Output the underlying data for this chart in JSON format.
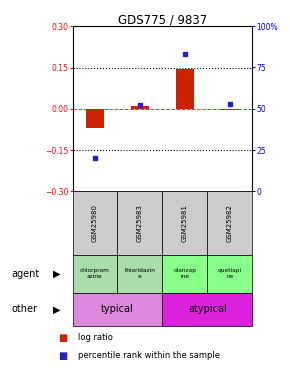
{
  "title": "GDS775 / 9837",
  "samples": [
    "GSM25980",
    "GSM25983",
    "GSM25981",
    "GSM25982"
  ],
  "log_ratios": [
    -0.07,
    0.01,
    0.145,
    -0.005
  ],
  "percentile_ranks": [
    20,
    52,
    83,
    53
  ],
  "agent_labels": [
    "chlorprom\nazine",
    "thioridazin\ne",
    "olanzap\nine",
    "quetiapi\nne"
  ],
  "agent_colors_typical": "#aaddaa",
  "agent_colors_atypical": "#88ff88",
  "typical_color": "#dd88dd",
  "atypical_color": "#dd22dd",
  "bar_color_red": "#cc2200",
  "dot_color_blue": "#2222cc",
  "ylim_left": [
    -0.3,
    0.3
  ],
  "ylim_right": [
    0,
    100
  ],
  "yticks_left": [
    -0.3,
    -0.15,
    0,
    0.15,
    0.3
  ],
  "yticks_right": [
    0,
    25,
    50,
    75,
    100
  ],
  "hline_values": [
    -0.15,
    0,
    0.15
  ],
  "sample_box_color": "#cccccc",
  "background_color": "#ffffff"
}
